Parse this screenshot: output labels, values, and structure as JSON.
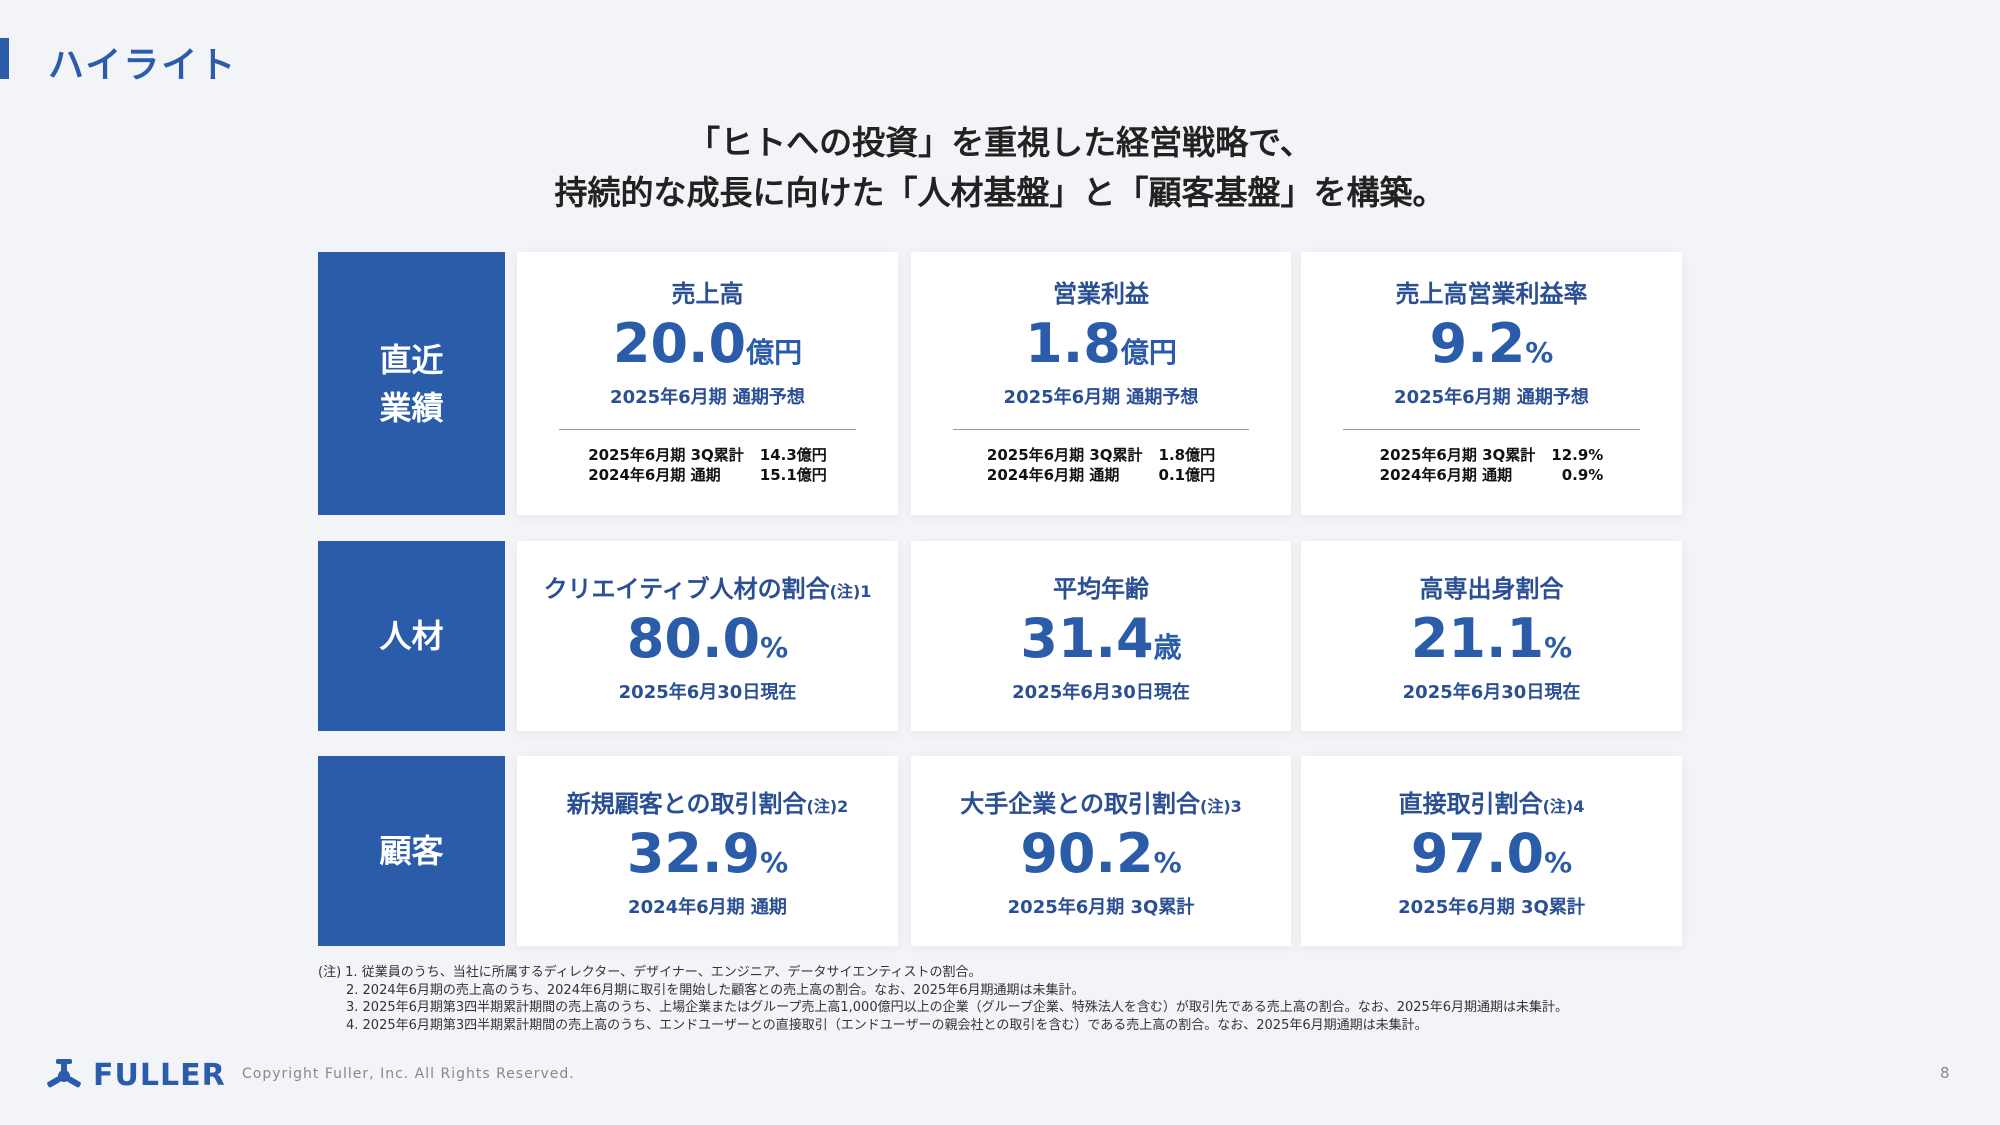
{
  "header": {
    "title": "ハイライト"
  },
  "headline": [
    "「ヒトへの投資」を重視した経営戦略で、",
    "持続的な成長に向けた「人材基盤」と「顧客基盤」を構築。"
  ],
  "rows": [
    {
      "label": [
        "直近",
        "業績"
      ],
      "cards": [
        {
          "title": "売上高",
          "value": "20.0",
          "unit": "億円",
          "period": "2025年6月期 通期予想",
          "details": [
            [
              "2025年6月期 3Q累計",
              "14.3億円"
            ],
            [
              "2024年6月期 通期",
              "15.1億円"
            ]
          ]
        },
        {
          "title": "営業利益",
          "value": "1.8",
          "unit": "億円",
          "period": "2025年6月期 通期予想",
          "details": [
            [
              "2025年6月期 3Q累計",
              "1.8億円"
            ],
            [
              "2024年6月期 通期",
              "0.1億円"
            ]
          ]
        },
        {
          "title": "売上高営業利益率",
          "value": "9.2",
          "unit": "%",
          "period": "2025年6月期 通期予想",
          "details": [
            [
              "2025年6月期 3Q累計",
              "12.9%"
            ],
            [
              "2024年6月期 通期",
              "0.9%"
            ]
          ]
        }
      ]
    },
    {
      "label": [
        "人材"
      ],
      "cards": [
        {
          "title": "クリエイティブ人材の割合",
          "note": "(注)1",
          "value": "80.0",
          "unit": "%",
          "period": "2025年6月30日現在"
        },
        {
          "title": "平均年齢",
          "value": "31.4",
          "unit": "歳",
          "period": "2025年6月30日現在"
        },
        {
          "title": "高専出身割合",
          "value": "21.1",
          "unit": "%",
          "period": "2025年6月30日現在"
        }
      ]
    },
    {
      "label": [
        "顧客"
      ],
      "cards": [
        {
          "title": "新規顧客との取引割合",
          "note": "(注)2",
          "value": "32.9",
          "unit": "%",
          "period": "2024年6月期 通期"
        },
        {
          "title": "大手企業との取引割合",
          "note": "(注)3",
          "value": "90.2",
          "unit": "%",
          "period": "2025年6月期 3Q累計"
        },
        {
          "title": "直接取引割合",
          "note": "(注)4",
          "value": "97.0",
          "unit": "%",
          "period": "2025年6月期 3Q累計"
        }
      ]
    }
  ],
  "footnotes": {
    "marker": "(注)",
    "items": [
      "1. 従業員のうち、当社に所属するディレクター、デザイナー、エンジニア、データサイエンティストの割合。",
      "2. 2024年6月期の売上高のうち、2024年6月期に取引を開始した顧客との売上高の割合。なお、2025年6月期通期は未集計。",
      "3. 2025年6月期第3四半期累計期間の売上高のうち、上場企業またはグループ売上高1,000億円以上の企業（グループ企業、特殊法人を含む）が取引先である売上高の割合。なお、2025年6月期通期は未集計。",
      "4. 2025年6月期第3四半期累計期間の売上高のうち、エンドユーザーとの直接取引（エンドユーザーの親会社との取引を含む）である売上高の割合。なお、2025年6月期通期は未集計。"
    ]
  },
  "footer": {
    "logo": "FULLER",
    "copyright": "Copyright Fuller, Inc. All Rights Reserved.",
    "page": "8"
  }
}
